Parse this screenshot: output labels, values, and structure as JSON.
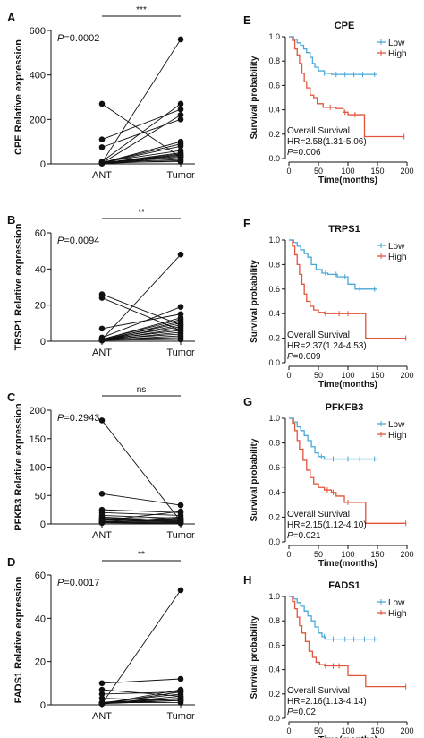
{
  "colors": {
    "low": "#4aa8d8",
    "high": "#e3543a",
    "ink": "#111111"
  },
  "left_panels": [
    {
      "letter": "A",
      "ylabel": "CPE Relative expression",
      "p_prefix": "P",
      "p_value": "=0.0002",
      "sig": "***",
      "ymax": 600,
      "ticks": [
        "0",
        "200",
        "400",
        "600"
      ],
      "tick_values": [
        0,
        200,
        400,
        600
      ],
      "x_ticks": [
        "ANT",
        "Tumor"
      ],
      "pairs": [
        [
          5,
          560
        ],
        [
          270,
          30
        ],
        [
          110,
          245
        ],
        [
          75,
          200
        ],
        [
          10,
          270
        ],
        [
          5,
          90
        ],
        [
          5,
          100
        ],
        [
          8,
          60
        ],
        [
          3,
          40
        ],
        [
          2,
          30
        ],
        [
          4,
          80
        ],
        [
          6,
          20
        ],
        [
          3,
          50
        ],
        [
          5,
          45
        ],
        [
          7,
          10
        ],
        [
          2,
          15
        ],
        [
          4,
          35
        ],
        [
          5,
          40
        ],
        [
          3,
          220
        ]
      ]
    },
    {
      "letter": "B",
      "ylabel": "TRSP1 Relative expression",
      "p_prefix": "P",
      "p_value": "=0.0094",
      "sig": "**",
      "ymax": 60,
      "ticks": [
        "0",
        "20",
        "40",
        "60"
      ],
      "tick_values": [
        0,
        20,
        40,
        60
      ],
      "x_ticks": [
        "ANT",
        "Tumor"
      ],
      "pairs": [
        [
          1,
          48
        ],
        [
          26,
          9
        ],
        [
          24,
          6
        ],
        [
          7,
          15
        ],
        [
          2,
          19
        ],
        [
          1,
          12
        ],
        [
          1,
          10
        ],
        [
          1,
          8
        ],
        [
          0.5,
          7
        ],
        [
          0.5,
          5
        ],
        [
          1,
          4
        ],
        [
          0.5,
          3
        ],
        [
          1,
          2
        ],
        [
          0.5,
          11
        ],
        [
          1,
          6
        ],
        [
          0.5,
          1
        ],
        [
          0.5,
          9
        ],
        [
          1,
          13
        ]
      ]
    },
    {
      "letter": "C",
      "ylabel": "PFKB3 Relative expression",
      "p_prefix": "P",
      "p_value": "=0.2943",
      "sig": "ns",
      "ymax": 200,
      "ticks": [
        "0",
        "50",
        "100",
        "150",
        "200"
      ],
      "tick_values": [
        0,
        50,
        100,
        150,
        200
      ],
      "x_ticks": [
        "ANT",
        "Tumor"
      ],
      "pairs": [
        [
          182,
          5
        ],
        [
          53,
          33
        ],
        [
          25,
          20
        ],
        [
          20,
          15
        ],
        [
          15,
          10
        ],
        [
          10,
          8
        ],
        [
          8,
          5
        ],
        [
          5,
          3
        ],
        [
          3,
          2
        ],
        [
          2,
          1
        ],
        [
          12,
          6
        ],
        [
          6,
          22
        ],
        [
          4,
          12
        ],
        [
          3,
          7
        ],
        [
          7,
          4
        ],
        [
          2,
          9
        ]
      ]
    },
    {
      "letter": "D",
      "ylabel": "FADS1 Relative expression",
      "p_prefix": "P",
      "p_value": "=0.0017",
      "sig": "**",
      "ymax": 60,
      "ticks": [
        "0",
        "20",
        "40",
        "60"
      ],
      "tick_values": [
        0,
        20,
        40,
        60
      ],
      "x_ticks": [
        "ANT",
        "Tumor"
      ],
      "pairs": [
        [
          0.5,
          53
        ],
        [
          10,
          12
        ],
        [
          7,
          4
        ],
        [
          5,
          6
        ],
        [
          3,
          2
        ],
        [
          1,
          5
        ],
        [
          0.5,
          3
        ],
        [
          0.5,
          4
        ],
        [
          1,
          1
        ],
        [
          0.5,
          2
        ],
        [
          0.5,
          6
        ],
        [
          1,
          3
        ],
        [
          0.5,
          7
        ],
        [
          1,
          2
        ]
      ]
    }
  ],
  "right_panels": [
    {
      "letter": "E",
      "title": "CPE",
      "hr": "HR=2.58(1.31-5.06)",
      "p_value": "=0.006",
      "low": [
        [
          0,
          1
        ],
        [
          8,
          0.98
        ],
        [
          14,
          0.95
        ],
        [
          20,
          0.93
        ],
        [
          25,
          0.9
        ],
        [
          30,
          0.87
        ],
        [
          36,
          0.83
        ],
        [
          40,
          0.78
        ],
        [
          44,
          0.75
        ],
        [
          50,
          0.72
        ],
        [
          60,
          0.7
        ],
        [
          72,
          0.69
        ],
        [
          150,
          0.69
        ]
      ],
      "high": [
        [
          0,
          1
        ],
        [
          6,
          0.97
        ],
        [
          10,
          0.9
        ],
        [
          14,
          0.85
        ],
        [
          18,
          0.78
        ],
        [
          22,
          0.7
        ],
        [
          26,
          0.63
        ],
        [
          30,
          0.58
        ],
        [
          36,
          0.52
        ],
        [
          42,
          0.5
        ],
        [
          48,
          0.45
        ],
        [
          58,
          0.42
        ],
        [
          80,
          0.41
        ],
        [
          92,
          0.38
        ],
        [
          100,
          0.36
        ],
        [
          128,
          0.18
        ],
        [
          195,
          0.18
        ]
      ],
      "low_ticks": [
        60,
        80,
        95,
        110,
        125,
        145
      ],
      "high_ticks": [
        70,
        95,
        112,
        195
      ]
    },
    {
      "letter": "F",
      "title": "TRPS1",
      "hr": "HR=2.37(1.24-4.53)",
      "p_value": "=0.009",
      "low": [
        [
          0,
          1
        ],
        [
          8,
          0.98
        ],
        [
          14,
          0.95
        ],
        [
          20,
          0.92
        ],
        [
          26,
          0.89
        ],
        [
          32,
          0.86
        ],
        [
          38,
          0.8
        ],
        [
          46,
          0.76
        ],
        [
          56,
          0.73
        ],
        [
          66,
          0.72
        ],
        [
          82,
          0.7
        ],
        [
          100,
          0.64
        ],
        [
          112,
          0.6
        ],
        [
          150,
          0.6
        ]
      ],
      "high": [
        [
          0,
          1
        ],
        [
          6,
          0.95
        ],
        [
          10,
          0.88
        ],
        [
          14,
          0.8
        ],
        [
          18,
          0.72
        ],
        [
          22,
          0.64
        ],
        [
          26,
          0.56
        ],
        [
          30,
          0.5
        ],
        [
          36,
          0.46
        ],
        [
          42,
          0.43
        ],
        [
          50,
          0.41
        ],
        [
          60,
          0.4
        ],
        [
          80,
          0.4
        ],
        [
          130,
          0.2
        ],
        [
          198,
          0.2
        ]
      ],
      "low_ticks": [
        62,
        80,
        95,
        120,
        145
      ],
      "high_ticks": [
        62,
        85,
        100,
        198
      ]
    },
    {
      "letter": "G",
      "title": "PFKFB3",
      "hr": "HR=2.15(1.12-4.10)",
      "p_value": "=0.021",
      "low": [
        [
          0,
          1
        ],
        [
          8,
          0.97
        ],
        [
          14,
          0.93
        ],
        [
          20,
          0.9
        ],
        [
          26,
          0.86
        ],
        [
          32,
          0.82
        ],
        [
          38,
          0.77
        ],
        [
          44,
          0.72
        ],
        [
          50,
          0.69
        ],
        [
          60,
          0.67
        ],
        [
          150,
          0.67
        ]
      ],
      "high": [
        [
          0,
          1
        ],
        [
          6,
          0.96
        ],
        [
          10,
          0.9
        ],
        [
          14,
          0.82
        ],
        [
          18,
          0.75
        ],
        [
          24,
          0.66
        ],
        [
          30,
          0.58
        ],
        [
          36,
          0.52
        ],
        [
          42,
          0.47
        ],
        [
          50,
          0.44
        ],
        [
          60,
          0.42
        ],
        [
          72,
          0.4
        ],
        [
          80,
          0.37
        ],
        [
          94,
          0.32
        ],
        [
          130,
          0.15
        ],
        [
          198,
          0.15
        ]
      ],
      "low_ticks": [
        55,
        75,
        100,
        120,
        145
      ],
      "high_ticks": [
        65,
        75,
        100,
        198
      ]
    },
    {
      "letter": "H",
      "title": "FADS1",
      "hr": "HR=2.16(1.13-4.14)",
      "p_value": "=0.02",
      "low": [
        [
          0,
          1
        ],
        [
          8,
          0.98
        ],
        [
          14,
          0.95
        ],
        [
          20,
          0.92
        ],
        [
          26,
          0.88
        ],
        [
          32,
          0.84
        ],
        [
          38,
          0.8
        ],
        [
          44,
          0.75
        ],
        [
          50,
          0.7
        ],
        [
          56,
          0.67
        ],
        [
          62,
          0.65
        ],
        [
          150,
          0.65
        ]
      ],
      "high": [
        [
          0,
          1
        ],
        [
          6,
          0.96
        ],
        [
          10,
          0.9
        ],
        [
          14,
          0.83
        ],
        [
          18,
          0.76
        ],
        [
          22,
          0.7
        ],
        [
          28,
          0.63
        ],
        [
          34,
          0.55
        ],
        [
          40,
          0.5
        ],
        [
          46,
          0.46
        ],
        [
          52,
          0.44
        ],
        [
          60,
          0.43
        ],
        [
          90,
          0.43
        ],
        [
          100,
          0.35
        ],
        [
          130,
          0.26
        ],
        [
          198,
          0.26
        ]
      ],
      "low_ticks": [
        60,
        75,
        95,
        110,
        128,
        145
      ],
      "high_ticks": [
        62,
        75,
        85,
        198
      ]
    }
  ],
  "km_common": {
    "ylabel": "Survival probability",
    "xlabel": "Time(months)",
    "legend_low": "Low",
    "legend_high": "High",
    "survival_text": "Overall Survival",
    "p_prefix": "P",
    "x_ticks": [
      "0",
      "50",
      "100",
      "150",
      "200"
    ],
    "x_tick_values": [
      0,
      50,
      100,
      150,
      200
    ],
    "y_ticks": [
      "0.0",
      "0.2",
      "0.4",
      "0.6",
      "0.8",
      "1.0"
    ],
    "y_tick_values": [
      0,
      0.2,
      0.4,
      0.6,
      0.8,
      1.0
    ]
  },
  "chart_data": [
    {
      "type": "paired-scatter",
      "title": "",
      "ylabel": "CPE Relative expression",
      "categories": [
        "ANT",
        "Tumor"
      ],
      "ylim": [
        0,
        600
      ],
      "p_value": "P=0.0002",
      "significance": "***"
    },
    {
      "type": "paired-scatter",
      "title": "",
      "ylabel": "TRSP1 Relative expression",
      "categories": [
        "ANT",
        "Tumor"
      ],
      "ylim": [
        0,
        60
      ],
      "p_value": "P=0.0094",
      "significance": "**"
    },
    {
      "type": "paired-scatter",
      "title": "",
      "ylabel": "PFKB3 Relative expression",
      "categories": [
        "ANT",
        "Tumor"
      ],
      "ylim": [
        0,
        200
      ],
      "p_value": "P=0.2943",
      "significance": "ns"
    },
    {
      "type": "paired-scatter",
      "title": "",
      "ylabel": "FADS1 Relative expression",
      "categories": [
        "ANT",
        "Tumor"
      ],
      "ylim": [
        0,
        60
      ],
      "p_value": "P=0.0017",
      "significance": "**"
    },
    {
      "type": "line",
      "title": "CPE",
      "xlabel": "Time(months)",
      "ylabel": "Survival probability",
      "xlim": [
        0,
        200
      ],
      "ylim": [
        0,
        1
      ],
      "series": [
        {
          "name": "Low"
        },
        {
          "name": "High"
        }
      ],
      "legend": "top-right"
    },
    {
      "type": "line",
      "title": "TRPS1",
      "xlabel": "Time(months)",
      "ylabel": "Survival probability",
      "xlim": [
        0,
        200
      ],
      "ylim": [
        0,
        1
      ],
      "series": [
        {
          "name": "Low"
        },
        {
          "name": "High"
        }
      ],
      "legend": "top-right"
    },
    {
      "type": "line",
      "title": "PFKFB3",
      "xlabel": "Time(months)",
      "ylabel": "Survival probability",
      "xlim": [
        0,
        200
      ],
      "ylim": [
        0,
        1
      ],
      "series": [
        {
          "name": "Low"
        },
        {
          "name": "High"
        }
      ],
      "legend": "top-right"
    },
    {
      "type": "line",
      "title": "FADS1",
      "xlabel": "Time(months)",
      "ylabel": "Survival probability",
      "xlim": [
        0,
        200
      ],
      "ylim": [
        0,
        1
      ],
      "series": [
        {
          "name": "Low"
        },
        {
          "name": "High"
        }
      ],
      "legend": "top-right"
    }
  ]
}
